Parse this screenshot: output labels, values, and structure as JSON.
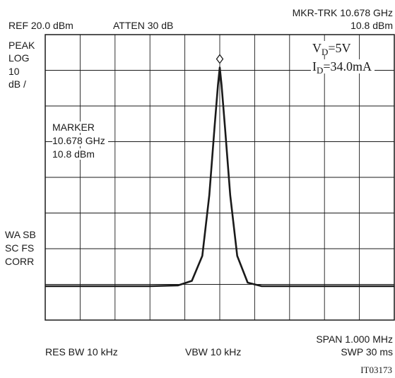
{
  "header": {
    "ref": "REF 20.0 dBm",
    "atten": "ATTEN 30 dB",
    "mkr_trk": "MKR-TRK 10.678 GHz",
    "mkr_trk_level": "10.8 dBm"
  },
  "left_labels": {
    "peak": "PEAK",
    "log": "LOG",
    "per_div_value": "10",
    "per_div_unit": "dB /",
    "wa_sb": "WA SB",
    "sc_fs": "SC FS",
    "corr": "CORR"
  },
  "marker_box": {
    "title": "MARKER",
    "freq": "10.678 GHz",
    "level": "10.8 dBm"
  },
  "conditions": {
    "vd_sym": "V",
    "vd_sub": "D",
    "vd_val": "=5V",
    "id_sym": "I",
    "id_sub": "D",
    "id_val": "=34.0mA"
  },
  "footer": {
    "span": "SPAN 1.000 MHz",
    "res_bw": "RES BW 10 kHz",
    "vbw": "VBW 10 kHz",
    "swp": "SWP 30 ms",
    "figure_id": "IT03173"
  },
  "colors": {
    "trace": "#1a1a1a",
    "grid": "#1a1a1a"
  },
  "chart_data": {
    "type": "line",
    "ref_level_dbm": 20.0,
    "scale_db_per_div": 10,
    "x_divisions": 10,
    "y_divisions": 8,
    "center_freq_ghz": 10.678,
    "span_mhz": 1.0,
    "ylim": [
      -60,
      20
    ],
    "marker": {
      "x_div": 5.0,
      "y_dbm": 10.8,
      "symbol": "diamond"
    },
    "series": [
      {
        "x_div": [
          0,
          1,
          2,
          3,
          3.8,
          4.2,
          4.5,
          4.7,
          4.85,
          4.95,
          5.0,
          5.05,
          5.15,
          5.3,
          5.5,
          5.8,
          6.2,
          7,
          8,
          9,
          10
        ],
        "y_dbm": [
          -50.5,
          -50.5,
          -50.5,
          -50.5,
          -50.3,
          -49,
          -42,
          -25,
          -6,
          6,
          10.8,
          6,
          -6,
          -25,
          -42,
          -49.5,
          -50.5,
          -50.5,
          -50.5,
          -50.5,
          -50.5
        ]
      }
    ]
  }
}
